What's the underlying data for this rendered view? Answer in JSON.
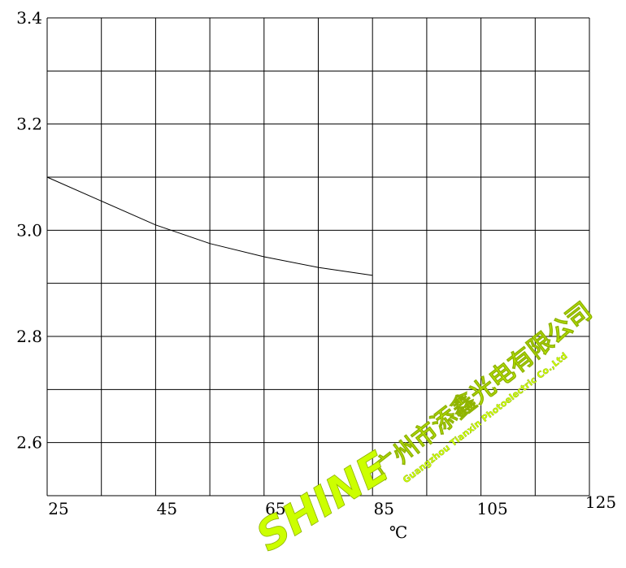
{
  "chart_data": {
    "type": "line",
    "title": "",
    "xlabel": "℃",
    "ylabel": "",
    "x_ticks": [
      "25",
      "45",
      "65",
      "85",
      "105",
      "125"
    ],
    "y_ticks": [
      "3.4",
      "3.2",
      "3.0",
      "2.8",
      "2.6"
    ],
    "xlim": [
      25,
      125
    ],
    "ylim": [
      2.5,
      3.4
    ],
    "grid": true,
    "series": [
      {
        "x": [
          25,
          35,
          45,
          55,
          65,
          75,
          85
        ],
        "y": [
          3.1,
          3.055,
          3.01,
          2.975,
          2.95,
          2.93,
          2.915
        ]
      }
    ]
  },
  "watermark": {
    "company_cn": "广州市添鑫光电有限公司",
    "company_en": "Guangzhou Tianxin Photoelectric Co.,Ltd",
    "brand": "SHINE",
    "color": "#ccff00"
  }
}
